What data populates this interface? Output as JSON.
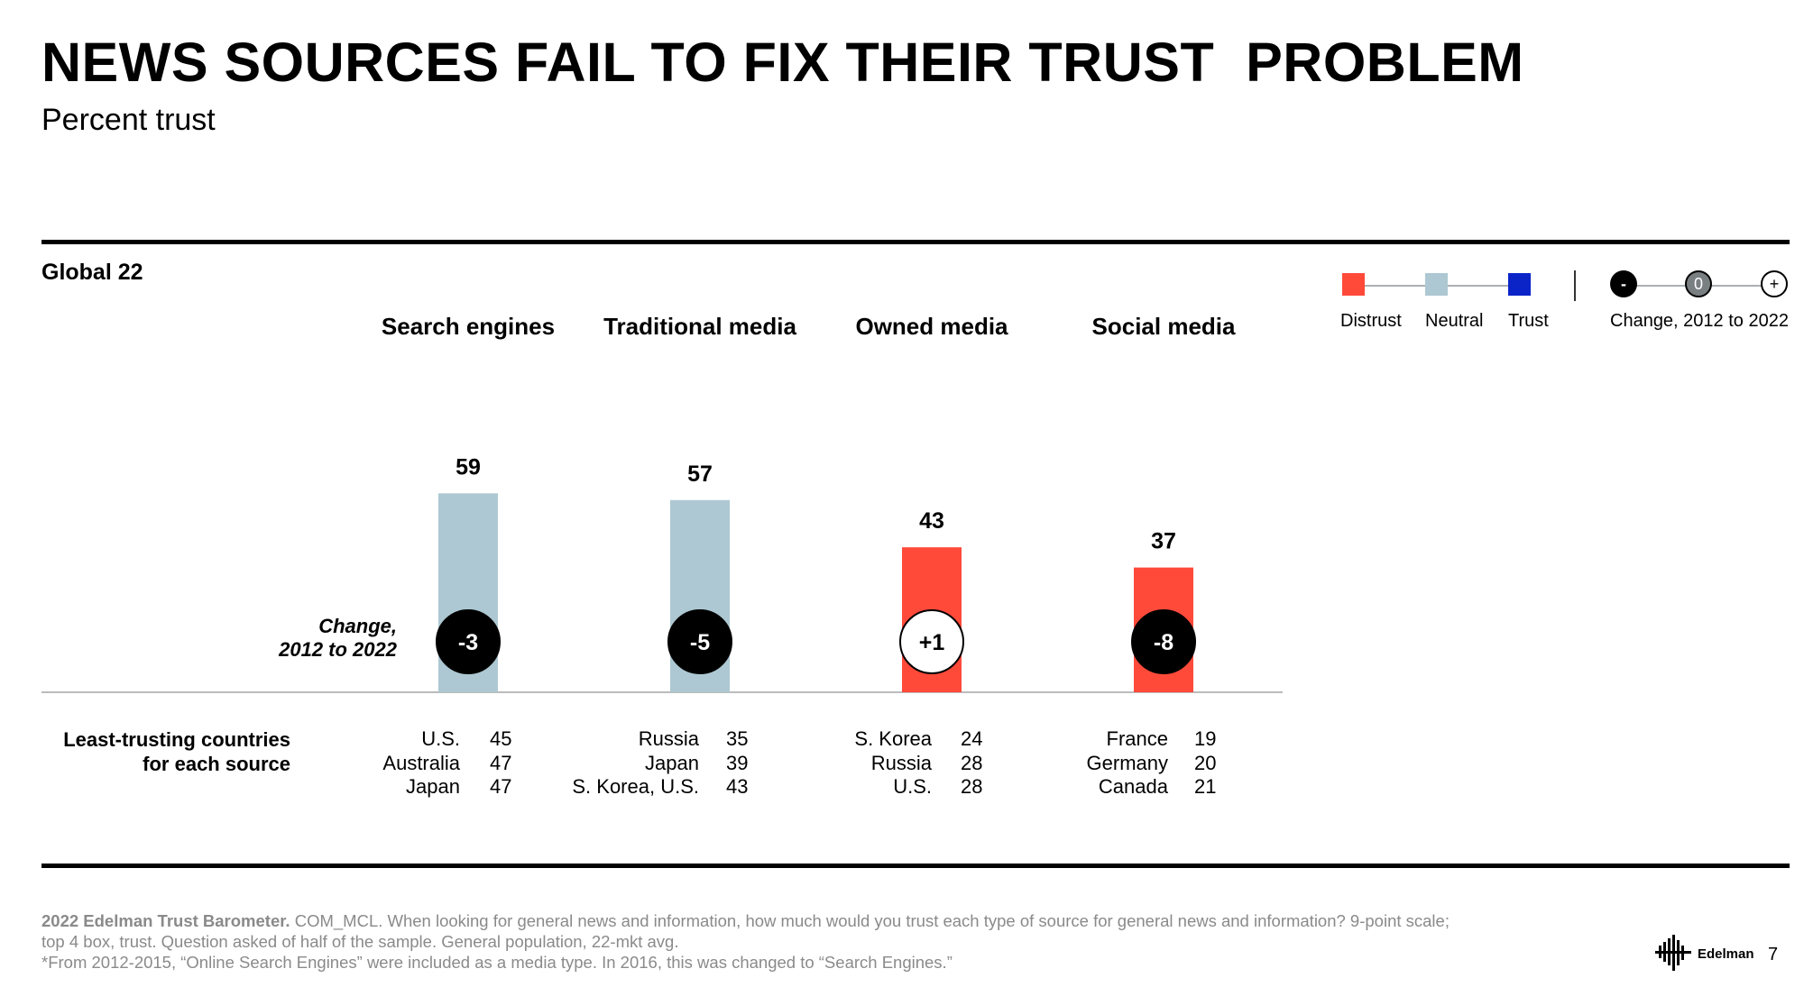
{
  "header": {
    "title": "NEWS SOURCES FAIL TO FIX THEIR TRUST  PROBLEM",
    "subtitle": "Percent trust"
  },
  "section_label": "Global 22",
  "legend": {
    "distrust": {
      "label": "Distrust",
      "color": "#ff4a3a"
    },
    "neutral": {
      "label": "Neutral",
      "color": "#adc8d2"
    },
    "trust": {
      "label": "Trust",
      "color": "#0b24c8"
    },
    "change": {
      "minus": "-",
      "zero": "0",
      "plus": "+",
      "label": "Change, 2012 to 2022"
    }
  },
  "change_axis_label": [
    "Change,",
    "2012 to 2022"
  ],
  "chart_data": {
    "type": "bar",
    "title": "NEWS SOURCES FAIL TO FIX THEIR TRUST  PROBLEM",
    "subtitle": "Percent trust",
    "ylabel": "Percent trust",
    "ylim": [
      0,
      100
    ],
    "categories": [
      "Search engines",
      "Traditional media",
      "Owned media",
      "Social media"
    ],
    "values": [
      59,
      57,
      43,
      37
    ],
    "value_labels": [
      "59",
      "57",
      "43",
      "37"
    ],
    "trust_level": [
      "Neutral",
      "Neutral",
      "Distrust",
      "Distrust"
    ],
    "bar_colors": [
      "#adc8d2",
      "#adc8d2",
      "#ff4a3a",
      "#ff4a3a"
    ],
    "change_2012_to_2022": [
      "-3",
      "-5",
      "+1",
      "-8"
    ],
    "change_direction": [
      "negative",
      "negative",
      "positive",
      "negative"
    ]
  },
  "least_trusting": {
    "label": [
      "Least-trusting countries",
      "for each source"
    ],
    "groups": [
      {
        "countries": [
          "U.S.",
          "Australia",
          "Japan"
        ],
        "values": [
          "45",
          "47",
          "47"
        ]
      },
      {
        "countries": [
          "Russia",
          "Japan",
          "S. Korea, U.S."
        ],
        "values": [
          "35",
          "39",
          "43"
        ]
      },
      {
        "countries": [
          "S. Korea",
          "Russia",
          "U.S."
        ],
        "values": [
          "24",
          "28",
          "28"
        ]
      },
      {
        "countries": [
          "France",
          "Germany",
          "Canada"
        ],
        "values": [
          "19",
          "20",
          "21"
        ]
      }
    ]
  },
  "footer": {
    "source_bold": "2022 Edelman Trust Barometer.",
    "line1": " COM_MCL. When looking for general news and information, how much would you trust each type of source for general news and information? 9-point scale;",
    "line2": "top 4 box, trust. Question asked of half of the sample. General population, 22-mkt avg.",
    "line3": "*From 2012-2015, “Online Search Engines” were included as a media type. In 2016, this was changed to “Search Engines.”"
  },
  "brand": {
    "name": "Edelman",
    "page_number": "7"
  }
}
